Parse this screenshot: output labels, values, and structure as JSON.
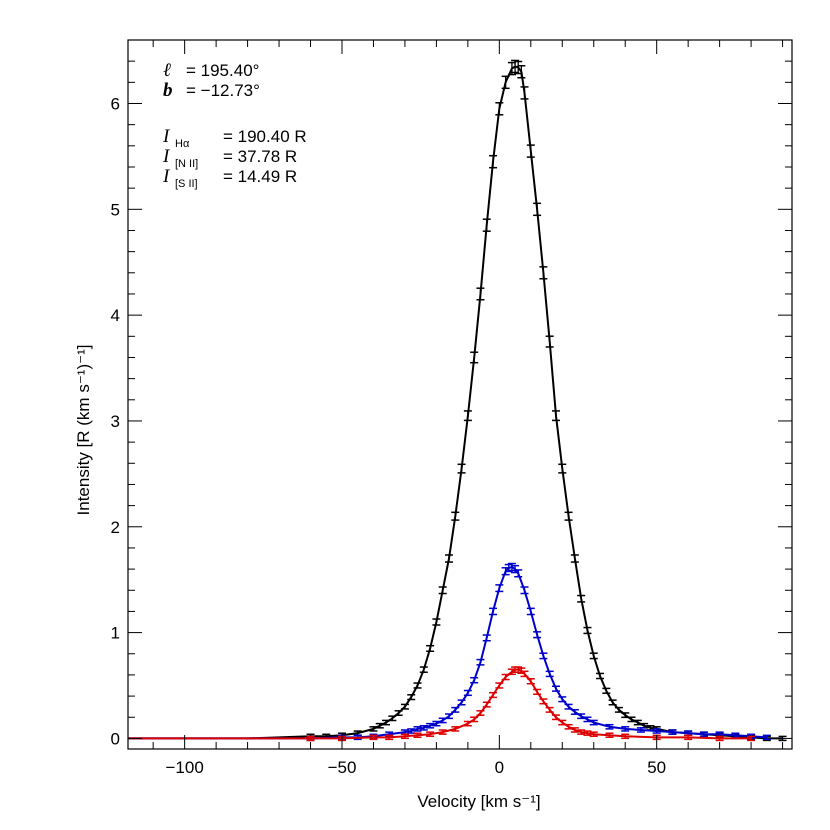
{
  "chart_data": {
    "type": "line",
    "title": "",
    "xlabel": "Velocity [km s⁻¹]",
    "ylabel": "Intensity [R (km s⁻¹)⁻¹]",
    "xlim": [
      -118,
      93
    ],
    "ylim": [
      -0.1,
      6.6
    ],
    "xticks": [
      -100,
      -50,
      0,
      50
    ],
    "yticks": [
      0,
      1,
      2,
      3,
      4,
      5,
      6
    ],
    "grid": false,
    "legend": "none",
    "annotations": {
      "l_symbol": "ℓ",
      "l_value": "= 195.40°",
      "b_symbol": "b",
      "b_value": "= −12.73°",
      "ha_symbol": "I",
      "ha_sub": "Hα",
      "ha_value": "= 190.40 R",
      "nii_symbol": "I",
      "nii_sub": "[N II]",
      "nii_value": "=  37.78 R",
      "sii_symbol": "I",
      "sii_sub": "[S II]",
      "sii_value": "=  14.49 R"
    },
    "series": [
      {
        "color": "#000000",
        "x": [
          -118,
          -110,
          -100,
          -90,
          -80,
          -70,
          -60,
          -55,
          -50,
          -45,
          -40,
          -38,
          -36,
          -34,
          -32,
          -30,
          -28,
          -26,
          -24,
          -22,
          -20,
          -18,
          -16,
          -14,
          -12,
          -10,
          -8,
          -6,
          -4,
          -2,
          0,
          2,
          4,
          5,
          6,
          7,
          8,
          10,
          12,
          14,
          16,
          18,
          20,
          22,
          24,
          26,
          28,
          30,
          32,
          34,
          36,
          38,
          40,
          42,
          44,
          46,
          48,
          50,
          55,
          60,
          65,
          70,
          75,
          80,
          85,
          90
        ],
        "y": [
          0.0,
          0.0,
          0.0,
          0.0,
          0.0,
          0.01,
          0.02,
          0.02,
          0.03,
          0.05,
          0.09,
          0.12,
          0.15,
          0.19,
          0.24,
          0.3,
          0.39,
          0.5,
          0.65,
          0.85,
          1.1,
          1.4,
          1.7,
          2.1,
          2.55,
          3.05,
          3.6,
          4.2,
          4.85,
          5.45,
          5.95,
          6.2,
          6.33,
          6.35,
          6.34,
          6.3,
          6.1,
          5.55,
          5.0,
          4.4,
          3.75,
          3.05,
          2.55,
          2.1,
          1.7,
          1.32,
          1.02,
          0.78,
          0.59,
          0.45,
          0.34,
          0.27,
          0.22,
          0.18,
          0.15,
          0.12,
          0.1,
          0.09,
          0.06,
          0.05,
          0.04,
          0.03,
          0.02,
          0.01,
          0.0,
          0.0
        ]
      },
      {
        "color": "#0000cc",
        "x": [
          -118,
          -100,
          -80,
          -60,
          -50,
          -45,
          -40,
          -35,
          -30,
          -28,
          -26,
          -24,
          -22,
          -20,
          -18,
          -16,
          -14,
          -12,
          -10,
          -8,
          -6,
          -4,
          -2,
          0,
          2,
          3,
          4,
          5,
          6,
          8,
          10,
          12,
          14,
          16,
          18,
          20,
          22,
          24,
          26,
          28,
          30,
          35,
          40,
          45,
          50,
          55,
          60,
          65,
          70,
          75,
          80,
          85
        ],
        "y": [
          0.0,
          0.0,
          0.0,
          0.0,
          0.01,
          0.01,
          0.02,
          0.04,
          0.06,
          0.07,
          0.09,
          0.1,
          0.12,
          0.14,
          0.17,
          0.21,
          0.27,
          0.34,
          0.43,
          0.55,
          0.72,
          0.95,
          1.2,
          1.42,
          1.58,
          1.61,
          1.62,
          1.6,
          1.56,
          1.4,
          1.2,
          0.98,
          0.78,
          0.61,
          0.47,
          0.37,
          0.3,
          0.25,
          0.21,
          0.18,
          0.15,
          0.11,
          0.09,
          0.08,
          0.07,
          0.06,
          0.05,
          0.04,
          0.04,
          0.03,
          0.02,
          0.01
        ]
      },
      {
        "color": "#dd0000",
        "x": [
          -118,
          -100,
          -80,
          -60,
          -50,
          -40,
          -35,
          -30,
          -26,
          -22,
          -18,
          -14,
          -10,
          -8,
          -6,
          -4,
          -2,
          0,
          2,
          4,
          5,
          6,
          7,
          8,
          10,
          12,
          14,
          16,
          18,
          20,
          22,
          24,
          26,
          28,
          30,
          35,
          40,
          50,
          60,
          70,
          80
        ],
        "y": [
          0.0,
          0.0,
          0.0,
          0.0,
          0.0,
          0.01,
          0.01,
          0.02,
          0.03,
          0.04,
          0.06,
          0.09,
          0.14,
          0.18,
          0.24,
          0.32,
          0.41,
          0.5,
          0.58,
          0.63,
          0.65,
          0.65,
          0.64,
          0.61,
          0.54,
          0.44,
          0.35,
          0.27,
          0.2,
          0.15,
          0.11,
          0.08,
          0.06,
          0.05,
          0.04,
          0.03,
          0.02,
          0.01,
          0.01,
          0.0,
          0.0
        ]
      }
    ]
  }
}
